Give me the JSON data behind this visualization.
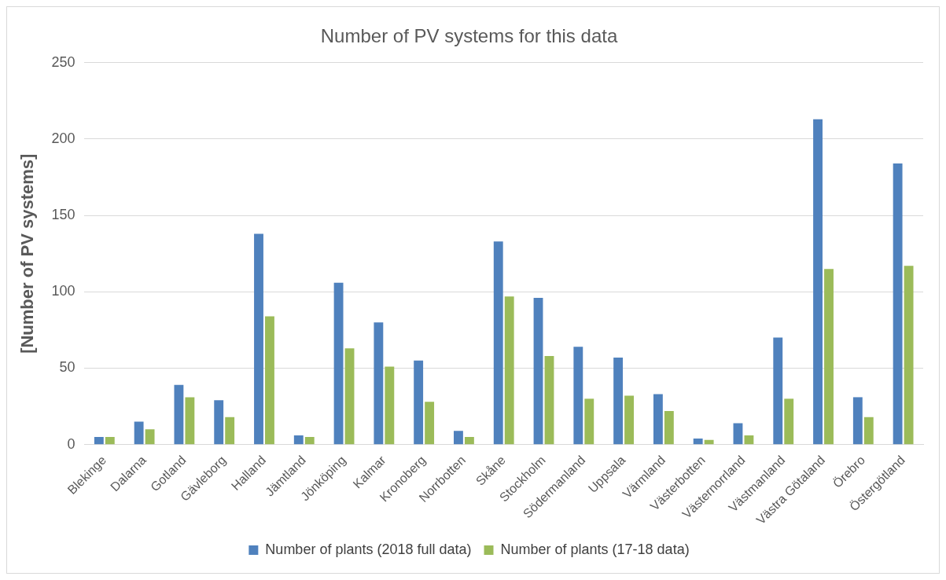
{
  "chart_data": {
    "type": "bar",
    "title": "Number of PV systems for this data",
    "ylabel": "[Number of PV systems]",
    "categories": [
      "Blekinge",
      "Dalarna",
      "Gotland",
      "Gävleborg",
      "Halland",
      "Jämtland",
      "Jönköping",
      "Kalmar",
      "Kronoberg",
      "Norrbotten",
      "Skåne",
      "Stockholm",
      "Södermanland",
      "Uppsala",
      "Värmland",
      "Västerbotten",
      "Västernorrland",
      "Västmanland",
      "Västra Götaland",
      "Örebro",
      "Östergötland"
    ],
    "series": [
      {
        "name": "Number of plants (2018 full data)",
        "color": "#4f81bd",
        "values": [
          5,
          15,
          39,
          29,
          138,
          6,
          106,
          80,
          55,
          9,
          133,
          96,
          64,
          57,
          33,
          4,
          14,
          70,
          213,
          31,
          184
        ]
      },
      {
        "name": "Number of plants (17-18 data)",
        "color": "#9bbb59",
        "values": [
          5,
          10,
          31,
          18,
          84,
          5,
          63,
          51,
          28,
          5,
          97,
          58,
          30,
          32,
          22,
          3,
          6,
          30,
          115,
          18,
          117
        ]
      }
    ],
    "ylim": [
      0,
      250
    ],
    "yticks": [
      0,
      50,
      100,
      150,
      200,
      250
    ],
    "grid": "y",
    "legend": "bottom"
  }
}
